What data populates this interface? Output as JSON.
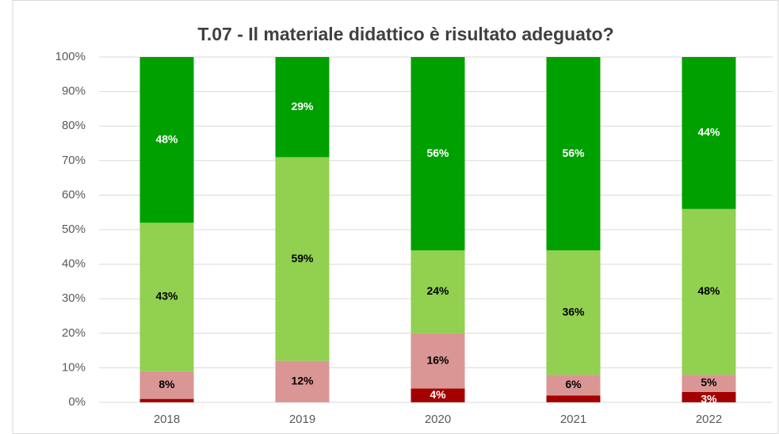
{
  "chart_data": {
    "type": "stacked_bar",
    "title": "T.07 - Il materiale didattico è risultato adeguato?",
    "categories": [
      "2018",
      "2019",
      "2020",
      "2021",
      "2022"
    ],
    "series": [
      {
        "color": "#a50000",
        "label_color": "#ffffff",
        "values": [
          1,
          0,
          4,
          2,
          3
        ],
        "value_labels": [
          null,
          null,
          "4%",
          null,
          "3%"
        ]
      },
      {
        "color": "#da9694",
        "label_color": "#000000",
        "values": [
          8,
          12,
          16,
          6,
          5
        ],
        "value_labels": [
          "8%",
          "12%",
          "16%",
          "6%",
          "5%"
        ]
      },
      {
        "color": "#92d050",
        "label_color": "#000000",
        "values": [
          43,
          59,
          24,
          36,
          48
        ],
        "value_labels": [
          "43%",
          "59%",
          "24%",
          "36%",
          "48%"
        ]
      },
      {
        "color": "#00a000",
        "label_color": "#ffffff",
        "values": [
          48,
          29,
          56,
          56,
          44
        ],
        "value_labels": [
          "48%",
          "29%",
          "56%",
          "56%",
          "44%"
        ]
      }
    ],
    "ylim": [
      0,
      100
    ],
    "yticks": [
      {
        "value": 0,
        "label": "0%"
      },
      {
        "value": 10,
        "label": "10%"
      },
      {
        "value": 20,
        "label": "20%"
      },
      {
        "value": 30,
        "label": "30%"
      },
      {
        "value": 40,
        "label": "40%"
      },
      {
        "value": 50,
        "label": "50%"
      },
      {
        "value": 60,
        "label": "60%"
      },
      {
        "value": 70,
        "label": "70%"
      },
      {
        "value": 80,
        "label": "80%"
      },
      {
        "value": 90,
        "label": "90%"
      },
      {
        "value": 100,
        "label": "100%"
      }
    ],
    "grid": true
  }
}
